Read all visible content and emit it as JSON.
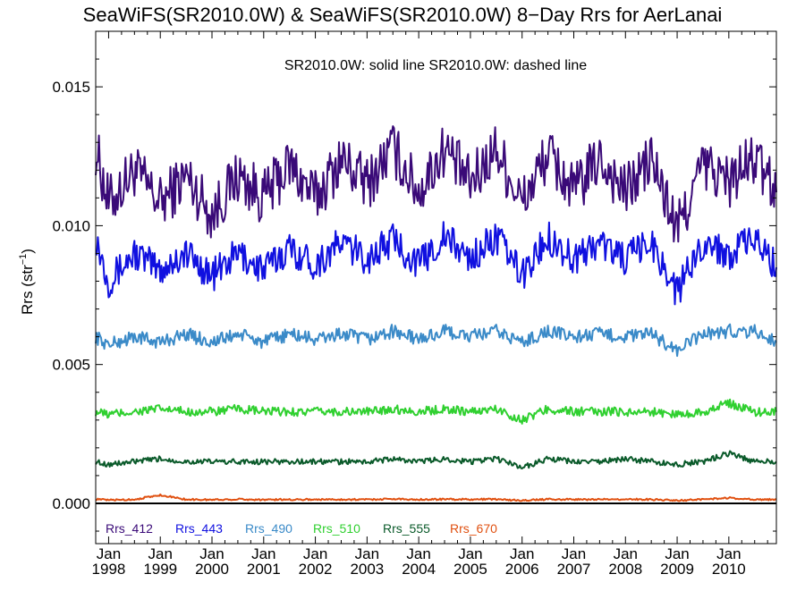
{
  "chart_data": {
    "type": "line",
    "title": "SeaWiFS(SR2010.0W) & SeaWiFS(SR2010.0W) 8−Day Rrs for AerLanai",
    "annotation": "SR2010.0W: solid line   SR2010.0W: dashed line",
    "ylabel": "Rrs (str",
    "ylabel_sup": "−1",
    "ylabel_close": ")",
    "xlim": [
      1997.75,
      2010.92
    ],
    "ylim": [
      -0.00145,
      0.017
    ],
    "yticks": [
      "0.000",
      "0.005",
      "0.010",
      "0.015"
    ],
    "ytick_values": [
      0.0,
      0.005,
      0.01,
      0.015
    ],
    "xticks": [
      {
        "value": 1998,
        "top": "Jan",
        "bottom": "1998"
      },
      {
        "value": 1999,
        "top": "Jan",
        "bottom": "1999"
      },
      {
        "value": 2000,
        "top": "Jan",
        "bottom": "2000"
      },
      {
        "value": 2001,
        "top": "Jan",
        "bottom": "2001"
      },
      {
        "value": 2002,
        "top": "Jan",
        "bottom": "2002"
      },
      {
        "value": 2003,
        "top": "Jan",
        "bottom": "2003"
      },
      {
        "value": 2004,
        "top": "Jan",
        "bottom": "2004"
      },
      {
        "value": 2005,
        "top": "Jan",
        "bottom": "2005"
      },
      {
        "value": 2006,
        "top": "Jan",
        "bottom": "2006"
      },
      {
        "value": 2007,
        "top": "Jan",
        "bottom": "2007"
      },
      {
        "value": 2008,
        "top": "Jan",
        "bottom": "2008"
      },
      {
        "value": 2009,
        "top": "Jan",
        "bottom": "2009"
      },
      {
        "value": 2010,
        "top": "Jan",
        "bottom": "2010"
      }
    ],
    "zero_line": 0.0,
    "grid": false,
    "legend_position": "bottom-left",
    "x_period": "8-day",
    "series": [
      {
        "name": "Rrs_412",
        "color": "#3a0a78",
        "x": [
          1997.75,
          1998.0,
          1998.5,
          1999.0,
          1999.5,
          2000.0,
          2000.5,
          2001.0,
          2001.5,
          2002.0,
          2002.5,
          2003.0,
          2003.5,
          2004.0,
          2004.5,
          2005.0,
          2005.5,
          2006.0,
          2006.5,
          2007.0,
          2007.5,
          2008.0,
          2008.5,
          2009.0,
          2009.5,
          2010.0,
          2010.5,
          2010.92
        ],
        "values": [
          0.0128,
          0.0108,
          0.012,
          0.0108,
          0.0118,
          0.0104,
          0.0118,
          0.011,
          0.0122,
          0.011,
          0.0124,
          0.0115,
          0.0128,
          0.0112,
          0.0128,
          0.0115,
          0.0128,
          0.0108,
          0.0126,
          0.0112,
          0.0124,
          0.0112,
          0.0124,
          0.0098,
          0.0122,
          0.0116,
          0.0124,
          0.0112
        ]
      },
      {
        "name": "Rrs_443",
        "color": "#1010e0",
        "x": [
          1997.75,
          1998.0,
          1998.5,
          1999.0,
          1999.5,
          2000.0,
          2000.5,
          2001.0,
          2001.5,
          2002.0,
          2002.5,
          2003.0,
          2003.5,
          2004.0,
          2004.5,
          2005.0,
          2005.5,
          2006.0,
          2006.5,
          2007.0,
          2007.5,
          2008.0,
          2008.5,
          2009.0,
          2009.5,
          2010.0,
          2010.5,
          2010.92
        ],
        "values": [
          0.0096,
          0.008,
          0.009,
          0.0084,
          0.009,
          0.0082,
          0.009,
          0.0084,
          0.0092,
          0.0086,
          0.0094,
          0.0088,
          0.0095,
          0.0086,
          0.0096,
          0.0088,
          0.0096,
          0.0082,
          0.0096,
          0.0088,
          0.0094,
          0.0088,
          0.0094,
          0.0076,
          0.0094,
          0.009,
          0.0095,
          0.0085
        ]
      },
      {
        "name": "Rrs_490",
        "color": "#3a8ac8",
        "x": [
          1997.75,
          1998.0,
          1998.5,
          1999.0,
          1999.5,
          2000.0,
          2000.5,
          2001.0,
          2001.5,
          2002.0,
          2002.5,
          2003.0,
          2003.5,
          2004.0,
          2004.5,
          2005.0,
          2005.5,
          2006.0,
          2006.5,
          2007.0,
          2007.5,
          2008.0,
          2008.5,
          2009.0,
          2009.5,
          2010.0,
          2010.5,
          2010.92
        ],
        "values": [
          0.006,
          0.0057,
          0.006,
          0.0058,
          0.0061,
          0.0058,
          0.0061,
          0.0058,
          0.0061,
          0.0059,
          0.0061,
          0.0059,
          0.0062,
          0.0059,
          0.0062,
          0.006,
          0.0062,
          0.0058,
          0.0062,
          0.006,
          0.0061,
          0.006,
          0.0061,
          0.0055,
          0.0061,
          0.0062,
          0.0062,
          0.0058
        ]
      },
      {
        "name": "Rrs_510",
        "color": "#30d030",
        "x": [
          1997.75,
          1998.0,
          1998.5,
          1999.0,
          1999.5,
          2000.0,
          2000.5,
          2001.0,
          2001.5,
          2002.0,
          2002.5,
          2003.0,
          2003.5,
          2004.0,
          2004.5,
          2005.0,
          2005.5,
          2006.0,
          2006.5,
          2007.0,
          2007.5,
          2008.0,
          2008.5,
          2009.0,
          2009.5,
          2010.0,
          2010.5,
          2010.92
        ],
        "values": [
          0.0033,
          0.0032,
          0.0033,
          0.0034,
          0.0033,
          0.0033,
          0.0034,
          0.0033,
          0.0033,
          0.0033,
          0.0033,
          0.0033,
          0.0034,
          0.0033,
          0.0034,
          0.0033,
          0.0034,
          0.003,
          0.0034,
          0.0033,
          0.0033,
          0.0033,
          0.0033,
          0.0032,
          0.0033,
          0.0036,
          0.0033,
          0.0033
        ]
      },
      {
        "name": "Rrs_555",
        "color": "#0a5a2a",
        "x": [
          1997.75,
          1998.0,
          1998.5,
          1999.0,
          1999.5,
          2000.0,
          2000.5,
          2001.0,
          2001.5,
          2002.0,
          2002.5,
          2003.0,
          2003.5,
          2004.0,
          2004.5,
          2005.0,
          2005.5,
          2006.0,
          2006.5,
          2007.0,
          2007.5,
          2008.0,
          2008.5,
          2009.0,
          2009.5,
          2010.0,
          2010.5,
          2010.92
        ],
        "values": [
          0.0015,
          0.0014,
          0.0015,
          0.0016,
          0.0015,
          0.0015,
          0.0015,
          0.0015,
          0.0015,
          0.0015,
          0.0015,
          0.0015,
          0.0016,
          0.0015,
          0.0016,
          0.0015,
          0.0016,
          0.0013,
          0.0016,
          0.0015,
          0.0015,
          0.0016,
          0.0015,
          0.0014,
          0.0015,
          0.0018,
          0.0015,
          0.0015
        ]
      },
      {
        "name": "Rrs_670",
        "color": "#e05010",
        "x": [
          1997.75,
          1998.0,
          1998.5,
          1999.0,
          1999.5,
          2000.0,
          2000.5,
          2001.0,
          2001.5,
          2002.0,
          2002.5,
          2003.0,
          2003.5,
          2004.0,
          2004.5,
          2005.0,
          2005.5,
          2006.0,
          2006.5,
          2007.0,
          2007.5,
          2008.0,
          2008.5,
          2009.0,
          2009.5,
          2010.0,
          2010.5,
          2010.92
        ],
        "values": [
          0.00015,
          0.00012,
          0.00014,
          0.0003,
          0.00014,
          0.00013,
          0.00015,
          0.00013,
          0.00014,
          0.00014,
          0.00014,
          0.00014,
          0.00016,
          0.00014,
          0.00015,
          0.00014,
          0.00015,
          0.0001,
          0.00015,
          0.00014,
          0.00014,
          0.00015,
          0.00014,
          0.0001,
          0.00014,
          0.0002,
          0.00014,
          0.00014
        ]
      }
    ]
  }
}
